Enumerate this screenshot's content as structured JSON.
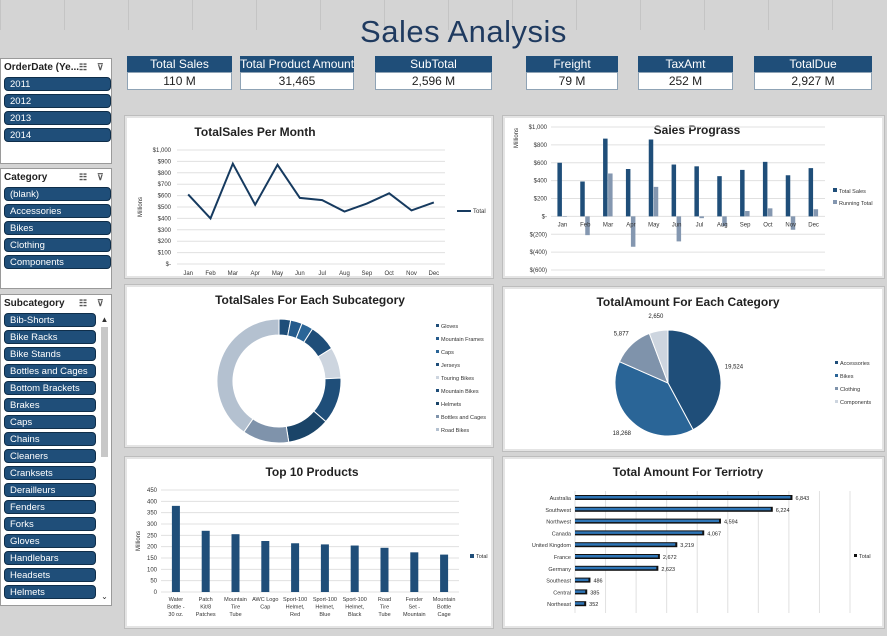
{
  "title": "Sales Analysis",
  "kpis": [
    {
      "label": "Total Sales",
      "value": "110 M"
    },
    {
      "label": "Total Product Amount",
      "value": "31,465"
    },
    {
      "label": "SubTotal",
      "value": "2,596 M"
    },
    {
      "label": "Freight",
      "value": "79 M"
    },
    {
      "label": "TaxAmt",
      "value": "252 M"
    },
    {
      "label": "TotalDue",
      "value": "2,927 M"
    }
  ],
  "slicers": {
    "orderdate": {
      "title": "OrderDate (Ye...",
      "items": [
        "2011",
        "2012",
        "2013",
        "2014"
      ]
    },
    "category": {
      "title": "Category",
      "items": [
        "(blank)",
        "Accessories",
        "Bikes",
        "Clothing",
        "Components"
      ]
    },
    "subcategory": {
      "title": "Subcategory",
      "items": [
        "Bib-Shorts",
        "Bike Racks",
        "Bike Stands",
        "Bottles and Cages",
        "Bottom Brackets",
        "Brakes",
        "Caps",
        "Chains",
        "Cleaners",
        "Cranksets",
        "Derailleurs",
        "Fenders",
        "Forks",
        "Gloves",
        "Handlebars",
        "Headsets",
        "Helmets"
      ]
    }
  },
  "icons": {
    "multiselect": "multi-select-icon",
    "clear": "clear-filter-icon"
  },
  "colors": {
    "dark_blue": "#1f4e79",
    "mid_blue": "#2e75b6",
    "navy": "#163a5f",
    "grey_blue": "#8497b0"
  },
  "chart_data": [
    {
      "id": "per_month",
      "type": "line",
      "title": "TotalSales Per Month",
      "ylabel": "Millions",
      "categories": [
        "Jan",
        "Feb",
        "Mar",
        "Apr",
        "May",
        "Jun",
        "Jul",
        "Aug",
        "Sep",
        "Oct",
        "Nov",
        "Dec"
      ],
      "series": [
        {
          "name": "Total",
          "values": [
            610,
            400,
            880,
            520,
            870,
            580,
            560,
            460,
            530,
            620,
            470,
            540
          ]
        }
      ],
      "ylim": [
        0,
        1000
      ],
      "yticks": [
        "$-",
        "$100",
        "$200",
        "$300",
        "$400",
        "$500",
        "$600",
        "$700",
        "$800",
        "$900",
        "$1,000"
      ],
      "legend": "right"
    },
    {
      "id": "progress",
      "type": "bar",
      "title": "Sales Prograss",
      "ylabel": "Millions",
      "categories": [
        "Jan",
        "Feb",
        "Mar",
        "Apr",
        "May",
        "Jun",
        "Jul",
        "Aug",
        "Sep",
        "Oct",
        "Nov",
        "Dec"
      ],
      "series": [
        {
          "name": "Total Sales",
          "values": [
            600,
            390,
            870,
            530,
            860,
            580,
            560,
            450,
            520,
            610,
            460,
            540
          ]
        },
        {
          "name": "Running Total",
          "values": [
            0,
            -210,
            480,
            -340,
            330,
            -280,
            -20,
            -110,
            60,
            90,
            -150,
            80
          ]
        }
      ],
      "ylim": [
        -600,
        1000
      ],
      "yticks": [
        "$(600)",
        "$(400)",
        "$(200)",
        "$-",
        "$200",
        "$400",
        "$600",
        "$800",
        "$1,000"
      ],
      "legend": "right"
    },
    {
      "id": "subcategory",
      "type": "pie",
      "title": "TotalSales For Each Subcategory",
      "categories": [
        "Gloves",
        "Mountain Frames",
        "Caps",
        "Jerseys",
        "Touring Bikes",
        "Mountain Bikes",
        "Helmets",
        "Bottles and Cages",
        "Road Bikes"
      ],
      "values": [
        3,
        3,
        3,
        7,
        8,
        12,
        11,
        12,
        40
      ],
      "legend": "right"
    },
    {
      "id": "category",
      "type": "pie",
      "title": "TotalAmount For Each Category",
      "categories": [
        "Accessories",
        "Bikes",
        "Clothing",
        "Components"
      ],
      "values": [
        19524,
        18268,
        5877,
        2650
      ],
      "labels": [
        "19,524",
        "18,268",
        "5,877",
        "2,650"
      ],
      "legend": "right"
    },
    {
      "id": "top10",
      "type": "bar",
      "title": "Top 10  Products",
      "ylabel": "Millions",
      "categories": [
        "Water Bottle - 30 oz.",
        "Patch Kit/8 Patches",
        "Mountain Tire Tube",
        "AWC Logo Cap",
        "Sport-100 Helmet, Red",
        "Sport-100 Helmet, Blue",
        "Sport-100 Helmet, Black",
        "Road Tire Tube",
        "Fender Set - Mountain",
        "Mountain Bottle Cage"
      ],
      "series": [
        {
          "name": "Total",
          "values": [
            380,
            270,
            255,
            225,
            215,
            210,
            205,
            195,
            175,
            165
          ]
        }
      ],
      "ylim": [
        0,
        450
      ],
      "yticks": [
        "0",
        "50",
        "100",
        "150",
        "200",
        "250",
        "300",
        "350",
        "400",
        "450"
      ],
      "legend": "right"
    },
    {
      "id": "territory",
      "type": "bar",
      "title": "Total Amount For Terriotry",
      "categories": [
        "Australia",
        "Southwest",
        "Northwest",
        "Canada",
        "United Kingdom",
        "France",
        "Germany",
        "Southeast",
        "Central",
        "Northeast"
      ],
      "series": [
        {
          "name": "Total",
          "values": [
            6843,
            6224,
            4594,
            4067,
            3219,
            2672,
            2623,
            486,
            385,
            352
          ]
        }
      ],
      "labels": [
        "6,843",
        "6,224",
        "4,594",
        "4,067",
        "3,219",
        "2,672",
        "2,623",
        "486",
        "385",
        "352"
      ],
      "legend": "right"
    }
  ]
}
